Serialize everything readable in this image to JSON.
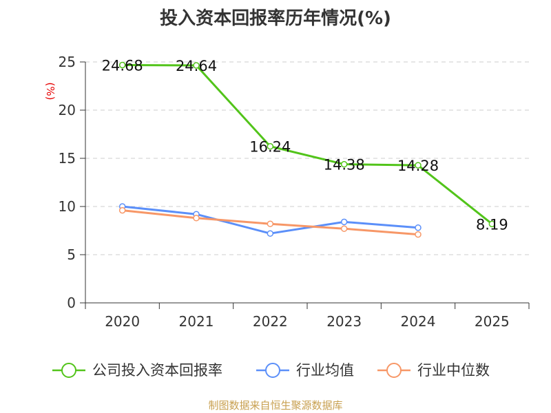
{
  "chart_data": {
    "type": "line",
    "title": "投入资本回报率历年情况(%)",
    "ylabel": "(%)",
    "xlabel": "",
    "categories": [
      "2020",
      "2021",
      "2022",
      "2023",
      "2024",
      "2025"
    ],
    "ylim": [
      0,
      25
    ],
    "yticks": [
      0,
      5,
      10,
      15,
      20,
      25
    ],
    "grid": true,
    "legend_position": "bottom",
    "series": [
      {
        "name": "公司投入资本回报率",
        "color": "#52c41a",
        "values": [
          24.68,
          24.64,
          16.24,
          14.38,
          14.28,
          8.19
        ],
        "labels": [
          "24.68",
          "24.64",
          "16.24",
          "14.38",
          "14.28",
          "8.19"
        ]
      },
      {
        "name": "行业均值",
        "color": "#5b8ff9",
        "values": [
          10.0,
          9.2,
          7.2,
          8.4,
          7.8,
          null
        ]
      },
      {
        "name": "行业中位数",
        "color": "#f79767",
        "values": [
          9.6,
          8.8,
          8.2,
          7.7,
          7.1,
          null
        ]
      }
    ]
  },
  "source_note": "制图数据来自恒生聚源数据库",
  "colors": {
    "axis": "#333333",
    "grid": "#cccccc",
    "ylabel": "#e60000",
    "source": "#c8a050"
  }
}
